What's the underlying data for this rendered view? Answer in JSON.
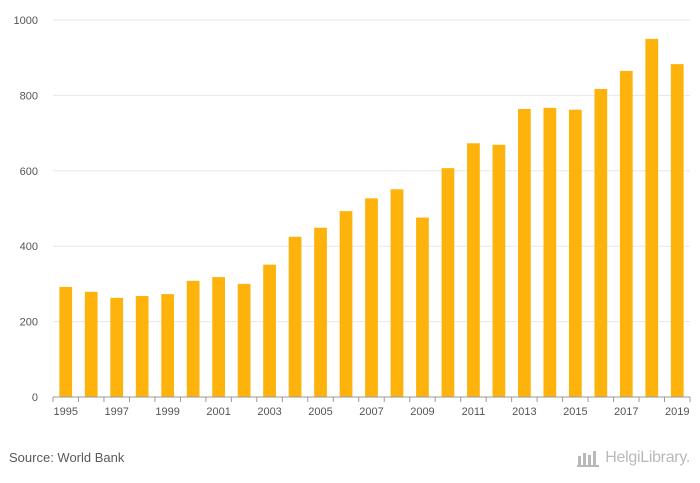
{
  "chart_data": {
    "type": "bar",
    "title": "",
    "xlabel": "",
    "ylabel": "",
    "ylim": [
      0,
      1000
    ],
    "yticks": [
      0,
      200,
      400,
      600,
      800,
      1000
    ],
    "grid": true,
    "legend": "none",
    "categories": [
      "1995",
      "1996",
      "1997",
      "1998",
      "1999",
      "2000",
      "2001",
      "2002",
      "2003",
      "2004",
      "2005",
      "2006",
      "2007",
      "2008",
      "2009",
      "2010",
      "2011",
      "2012",
      "2013",
      "2014",
      "2015",
      "2016",
      "2017",
      "2018",
      "2019"
    ],
    "xtick_labels": [
      "1995",
      "1997",
      "1999",
      "2001",
      "2003",
      "2005",
      "2007",
      "2009",
      "2011",
      "2013",
      "2015",
      "2017",
      "2019"
    ],
    "series": [
      {
        "name": "Value",
        "values": [
          292,
          279,
          263,
          268,
          273,
          308,
          318,
          300,
          351,
          425,
          449,
          493,
          527,
          551,
          476,
          607,
          673,
          669,
          764,
          767,
          762,
          817,
          865,
          950,
          883
        ]
      }
    ],
    "bar_color": "#FDB30B",
    "grid_color": "#e7e7e7",
    "axis_color": "#999999"
  },
  "footer": {
    "source": "Source: World Bank",
    "brand": "HelgiLibrary."
  }
}
